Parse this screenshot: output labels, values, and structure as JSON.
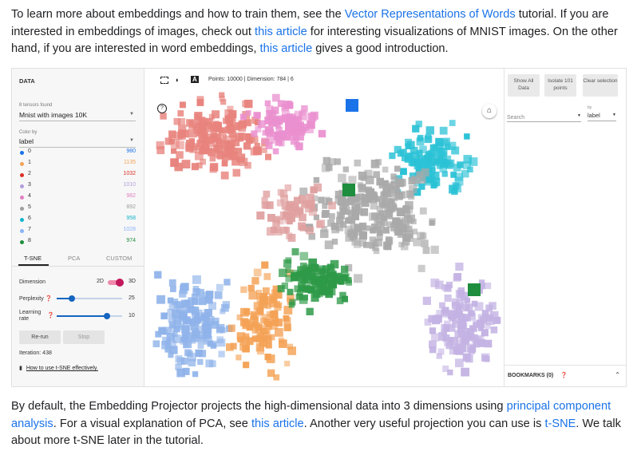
{
  "intro": {
    "t1": "To learn more about embeddings and how to train them, see the ",
    "link1": "Vector Representations of Words",
    "t2": " tutorial. If you are interested in embeddings of images, check out ",
    "link2": "this article",
    "t3": " for interesting visualizations of MNIST images. On the other hand, if you are interested in word embeddings, ",
    "link3": "this article",
    "t4": " gives a good introduction."
  },
  "outro": {
    "t1": "By default, the Embedding Projector projects the high-dimensional data into 3 dimensions using ",
    "link1": "principal component analysis",
    "t2": ". For a visual explanation of PCA, see ",
    "link2": "this article",
    "t3": ". Another very useful projection you can use is ",
    "link3": "t-SNE",
    "t4": ". We talk about more t-SNE later in the tutorial."
  },
  "data_panel": {
    "title": "DATA",
    "tensors_found": "8 tensors found",
    "tensor_value": "Mnist with images 10K",
    "color_by_label": "Color by",
    "color_by_value": "label",
    "legend": [
      {
        "label": "0",
        "count": "980",
        "color": "#1a73e8"
      },
      {
        "label": "1",
        "count": "1135",
        "color": "#f4a256"
      },
      {
        "label": "2",
        "count": "1032",
        "color": "#d93025"
      },
      {
        "label": "3",
        "count": "1010",
        "color": "#b39ddb"
      },
      {
        "label": "4",
        "count": "982",
        "color": "#e27fc3"
      },
      {
        "label": "5",
        "count": "892",
        "color": "#9e9e9e"
      },
      {
        "label": "6",
        "count": "958",
        "color": "#12b5cb"
      },
      {
        "label": "7",
        "count": "1028",
        "color": "#8ab4f8"
      },
      {
        "label": "8",
        "count": "974",
        "color": "#1e8e3e"
      }
    ]
  },
  "projection_tabs": [
    "T-SNE",
    "PCA",
    "CUSTOM"
  ],
  "tsne": {
    "dimension_label": "Dimension",
    "dim_2d": "2D",
    "dim_3d": "3D",
    "perplexity_label": "Perplexity",
    "perplexity_value": "25",
    "learning_rate_label": "Learning rate",
    "learning_rate_value": "10",
    "rerun_label": "Re-run",
    "stop_label": "Stop",
    "iteration": "Iteration: 438",
    "help_link": "How to use t-SNE effectively."
  },
  "toolbar": {
    "info": "Points: 10000 | Dimension: 784 | 6"
  },
  "inspector": {
    "show_all": "Show All Data",
    "isolate": "Isolate 101 points",
    "clear": "Clear selection",
    "search_placeholder": "Search",
    "by_label": "by",
    "by_value": "label",
    "bookmarks": "BOOKMARKS (0)"
  }
}
